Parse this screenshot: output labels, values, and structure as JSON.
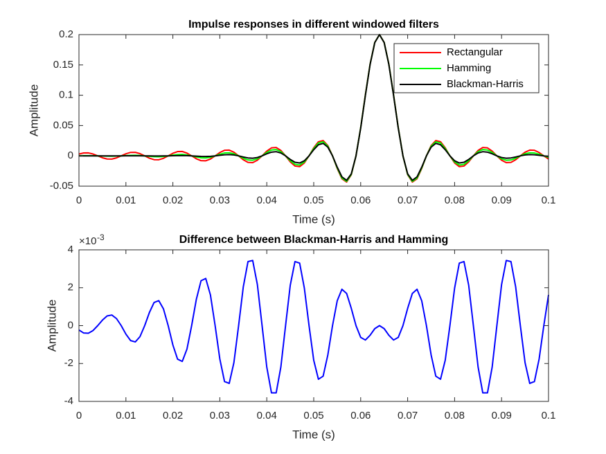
{
  "chart_data": [
    {
      "type": "line",
      "title": "Impulse responses in different windowed filters",
      "xlabel": "Time (s)",
      "ylabel": "Amplitude",
      "x": [
        0,
        0.001,
        0.002,
        0.003,
        0.004,
        0.005,
        0.006,
        0.007,
        0.008,
        0.009,
        0.01,
        0.011,
        0.012,
        0.013,
        0.014,
        0.015,
        0.016,
        0.017,
        0.018,
        0.019,
        0.02,
        0.021,
        0.022,
        0.023,
        0.024,
        0.025,
        0.026,
        0.027,
        0.028,
        0.029,
        0.03,
        0.031,
        0.032,
        0.033,
        0.034,
        0.035,
        0.036,
        0.037,
        0.038,
        0.039,
        0.04,
        0.041,
        0.042,
        0.043,
        0.044,
        0.045,
        0.046,
        0.047,
        0.048,
        0.049,
        0.05,
        0.051,
        0.052,
        0.053,
        0.054,
        0.055,
        0.056,
        0.057,
        0.058,
        0.059,
        0.06,
        0.061,
        0.062,
        0.063,
        0.064,
        0.065,
        0.066,
        0.067,
        0.068,
        0.069,
        0.07,
        0.071,
        0.072,
        0.073,
        0.074,
        0.075,
        0.076,
        0.077,
        0.078,
        0.079,
        0.08,
        0.081,
        0.082,
        0.083,
        0.084,
        0.085,
        0.086,
        0.087,
        0.088,
        0.089,
        0.09,
        0.091,
        0.092,
        0.093,
        0.094,
        0.095,
        0.096,
        0.097,
        0.098,
        0.099,
        0.1
      ],
      "xlim": [
        0,
        0.1
      ],
      "xticks": [
        0,
        0.01,
        0.02,
        0.03,
        0.04,
        0.05,
        0.06,
        0.07,
        0.08,
        0.09,
        0.1
      ],
      "ylim": [
        -0.05,
        0.2
      ],
      "yticks": [
        -0.05,
        0,
        0.05,
        0.1,
        0.15,
        0.2
      ],
      "legend": "upper right",
      "series": [
        {
          "name": "Rectangular",
          "color": "#ff0000",
          "values": [
            0.00292,
            0.00481,
            0.00488,
            0.00307,
            0,
            -0.00317,
            -0.00522,
            -0.00531,
            -0.00334,
            0,
            0.00346,
            0.00571,
            0.00582,
            0.00367,
            0,
            -0.00382,
            -0.00631,
            -0.00644,
            -0.00407,
            0,
            0.00425,
            0.00704,
            0.00721,
            0.00456,
            0,
            -0.0048,
            -0.00797,
            -0.00818,
            -0.0052,
            0,
            0.0055,
            0.00917,
            0.00946,
            0.00604,
            0,
            -0.00645,
            -0.01081,
            -0.01121,
            -0.0072,
            0,
            0.0078,
            0.01316,
            0.01376,
            0.00891,
            0,
            -0.00985,
            -0.01682,
            -0.01781,
            -0.01169,
            0,
            0.01336,
            0.02329,
            0.02523,
            0.01701,
            0,
            -0.02079,
            -0.03784,
            -0.04325,
            -0.03118,
            0,
            0.04677,
            0.10091,
            0.15137,
            0.1871,
            0.2,
            0.1871,
            0.15137,
            0.10091,
            0.04677,
            0,
            -0.03118,
            -0.04325,
            -0.03784,
            -0.02079,
            0,
            0.01701,
            0.02523,
            0.02329,
            0.01336,
            0,
            -0.01169,
            -0.01781,
            -0.01682,
            -0.00985,
            0,
            0.00891,
            0.01376,
            0.01316,
            0.0078,
            0,
            -0.0072,
            -0.01121,
            -0.01081,
            -0.00645,
            0,
            0.00604,
            0.00946,
            0.00917,
            0.0055,
            0,
            -0.0052
          ]
        },
        {
          "name": "Hamming",
          "color": "#00ff00",
          "values": [
            0.00023,
            0.00039,
            0.0004,
            0.00026,
            0,
            -0.0003,
            -0.00052,
            -0.00057,
            -0.00038,
            0,
            0.00046,
            0.00083,
            0.00092,
            0.00063,
            0,
            -0.00076,
            -0.00135,
            -0.00149,
            -0.00101,
            0,
            0.00121,
            0.00214,
            0.00233,
            0.00157,
            0,
            -0.00185,
            -0.00324,
            -0.0035,
            -0.00234,
            0,
            0.00272,
            0.00474,
            0.00511,
            0.0034,
            0,
            -0.00392,
            -0.00681,
            -0.00731,
            -0.00485,
            0,
            0.00559,
            0.00969,
            0.01041,
            0.00692,
            0,
            -0.00802,
            -0.01399,
            -0.01512,
            -0.01011,
            0,
            0.01196,
            0.02118,
            0.02327,
            0.0159,
            0,
            -0.01987,
            -0.03651,
            -0.04209,
            -0.03056,
            0,
            0.04636,
            0.10041,
            0.15103,
            0.187,
            0.2,
            0.187,
            0.15103,
            0.10041,
            0.04636,
            0,
            -0.03056,
            -0.04209,
            -0.03651,
            -0.01987,
            0,
            0.0159,
            0.02327,
            0.02118,
            0.01196,
            0,
            -0.01011,
            -0.01512,
            -0.01399,
            -0.00802,
            0,
            0.00692,
            0.01041,
            0.00969,
            0.00559,
            0,
            -0.00485,
            -0.00731,
            -0.00681,
            -0.00392,
            0,
            0.0034,
            0.00511,
            0.00474,
            0.00272,
            0,
            -0.00234
          ]
        },
        {
          "name": "Blackman-Harris",
          "color": "#000000",
          "values": [
            0,
            0,
            0,
            0,
            0,
            0,
            -1e-05,
            -1e-05,
            -1e-05,
            0,
            2e-05,
            4e-05,
            5e-05,
            4e-05,
            0,
            -7e-05,
            -0.00014,
            -0.00017,
            -0.00013,
            0,
            0.00019,
            0.00037,
            0.00044,
            0.00033,
            0,
            -0.00046,
            -0.00087,
            -0.00101,
            -0.00073,
            0,
            0.00097,
            0.0018,
            0.00206,
            0.00145,
            0,
            -0.00187,
            -0.00343,
            -0.00387,
            -0.00269,
            0,
            0.00339,
            0.00614,
            0.00686,
            0.00474,
            0,
            -0.00589,
            -0.01061,
            -0.01182,
            -0.00813,
            0,
            0.01013,
            0.01835,
            0.0206,
            0.01435,
            0,
            -0.01856,
            -0.03459,
            -0.04038,
            -0.02965,
            0,
            0.04574,
            0.09965,
            0.15053,
            0.18684,
            0.2,
            0.18684,
            0.15053,
            0.09965,
            0.04574,
            0,
            -0.02965,
            -0.04038,
            -0.03459,
            -0.01856,
            0,
            0.01435,
            0.0206,
            0.01835,
            0.01013,
            0,
            -0.00813,
            -0.01182,
            -0.01061,
            -0.00589,
            0,
            0.00474,
            0.00686,
            0.00614,
            0.00339,
            0,
            -0.00269,
            -0.00387,
            -0.00343,
            -0.00187,
            0,
            0.00145,
            0.00206,
            0.0018,
            0.00097,
            0,
            -0.00073
          ]
        }
      ]
    },
    {
      "type": "line",
      "title": "Difference between Blackman-Harris and Hamming",
      "xlabel": "Time (s)",
      "ylabel": "Amplitude",
      "y_exponent": {
        "base": "×10",
        "power": "-3"
      },
      "x": [
        0,
        0.001,
        0.002,
        0.003,
        0.004,
        0.005,
        0.006,
        0.007,
        0.008,
        0.009,
        0.01,
        0.011,
        0.012,
        0.013,
        0.014,
        0.015,
        0.016,
        0.017,
        0.018,
        0.019,
        0.02,
        0.021,
        0.022,
        0.023,
        0.024,
        0.025,
        0.026,
        0.027,
        0.028,
        0.029,
        0.03,
        0.031,
        0.032,
        0.033,
        0.034,
        0.035,
        0.036,
        0.037,
        0.038,
        0.039,
        0.04,
        0.041,
        0.042,
        0.043,
        0.044,
        0.045,
        0.046,
        0.047,
        0.048,
        0.049,
        0.05,
        0.051,
        0.052,
        0.053,
        0.054,
        0.055,
        0.056,
        0.057,
        0.058,
        0.059,
        0.06,
        0.061,
        0.062,
        0.063,
        0.064,
        0.065,
        0.066,
        0.067,
        0.068,
        0.069,
        0.07,
        0.071,
        0.072,
        0.073,
        0.074,
        0.075,
        0.076,
        0.077,
        0.078,
        0.079,
        0.08,
        0.081,
        0.082,
        0.083,
        0.084,
        0.085,
        0.086,
        0.087,
        0.088,
        0.089,
        0.09,
        0.091,
        0.092,
        0.093,
        0.094,
        0.095,
        0.096,
        0.097,
        0.098,
        0.099,
        0.1
      ],
      "xlim": [
        0,
        0.1
      ],
      "xticks": [
        0,
        0.01,
        0.02,
        0.03,
        0.04,
        0.05,
        0.06,
        0.07,
        0.08,
        0.09,
        0.1
      ],
      "ylim": [
        -4,
        4
      ],
      "yticks": [
        -4,
        -2,
        0,
        2,
        4
      ],
      "series": [
        {
          "color": "#0000ff",
          "values": [
            -0.23,
            -0.39,
            -0.4,
            -0.26,
            0,
            0.29,
            0.51,
            0.56,
            0.37,
            0,
            -0.45,
            -0.79,
            -0.86,
            -0.58,
            0,
            0.69,
            1.22,
            1.32,
            0.88,
            0,
            -1.02,
            -1.77,
            -1.89,
            -1.24,
            0,
            1.39,
            2.37,
            2.49,
            1.62,
            0,
            -1.76,
            -2.95,
            -3.05,
            -1.95,
            0,
            2.05,
            3.38,
            3.44,
            2.16,
            0,
            -2.19,
            -3.55,
            -3.55,
            -2.18,
            0,
            2.13,
            3.38,
            3.3,
            1.98,
            0,
            -1.83,
            -2.83,
            -2.67,
            -1.55,
            0,
            1.31,
            1.92,
            1.7,
            0.91,
            0,
            -0.62,
            -0.76,
            -0.51,
            -0.16,
            0,
            -0.16,
            -0.51,
            -0.76,
            -0.62,
            0,
            0.91,
            1.7,
            1.92,
            1.31,
            0,
            -1.55,
            -2.67,
            -2.83,
            -1.83,
            0,
            1.98,
            3.3,
            3.38,
            2.13,
            0,
            -2.18,
            -3.55,
            -3.55,
            -2.19,
            0,
            2.16,
            3.44,
            3.38,
            2.05,
            0,
            -1.95,
            -3.05,
            -2.95,
            -1.76,
            0,
            1.62
          ]
        }
      ]
    }
  ]
}
